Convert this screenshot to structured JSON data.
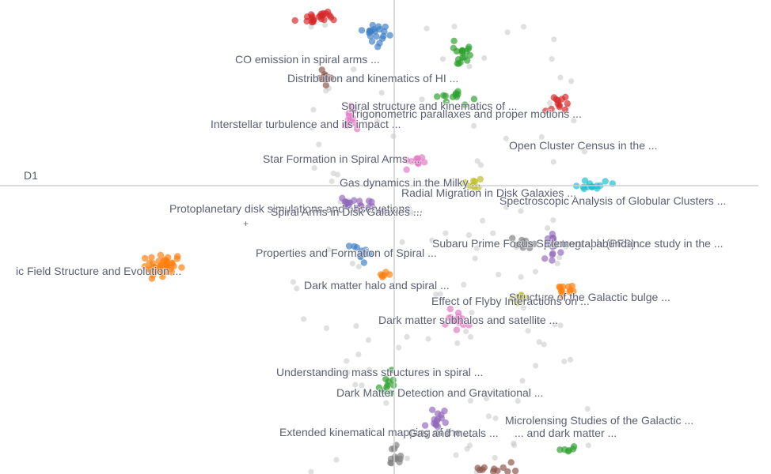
{
  "chart_data": {
    "type": "scatter",
    "xlabel": "",
    "ylabel": "D1",
    "xlim": [
      -1.0,
      1.0
    ],
    "ylim": [
      -1.0,
      1.0
    ],
    "grid": false,
    "legend": "none",
    "marker": "+",
    "clusters": [
      {
        "label": "CO emission in spiral arms ...",
        "color": "#d62728",
        "center": [
          -0.237,
          0.735
        ],
        "spread": [
          0.05,
          0.02
        ],
        "n": 22
      },
      {
        "label": "Distribution and kinematics of HI ...",
        "color": "#3d7fc6",
        "center": [
          -0.05,
          0.66
        ],
        "spread": [
          0.04,
          0.05
        ],
        "n": 20
      },
      {
        "label": "Spiral structure and kinematics of ...",
        "color": "#2ca02c",
        "center": [
          0.218,
          0.575
        ],
        "spread": [
          0.03,
          0.05
        ],
        "n": 18
      },
      {
        "label": "Trigonometric parallaxes and proper motions ...",
        "color": "#2ca02c",
        "center": [
          0.19,
          0.39
        ],
        "spread": [
          0.05,
          0.03
        ],
        "n": 12
      },
      {
        "label": "Interstellar turbulence and its impact ...",
        "color": "#8c564b",
        "center": [
          -0.22,
          0.47
        ],
        "spread": [
          0.02,
          0.05
        ],
        "n": 10
      },
      {
        "label": "Open Cluster Census in the ...",
        "color": "#d62728",
        "center": [
          0.515,
          0.36
        ],
        "spread": [
          0.03,
          0.04
        ],
        "n": 12
      },
      {
        "label": "Star Formation in Spiral Arms ...",
        "color": "#e377c2",
        "center": [
          -0.133,
          0.295
        ],
        "spread": [
          0.03,
          0.05
        ],
        "n": 12
      },
      {
        "label": "Gas dynamics in the Milky ...",
        "color": "#e377c2",
        "center": [
          0.075,
          0.105
        ],
        "spread": [
          0.04,
          0.03
        ],
        "n": 10
      },
      {
        "label": "Radial Migration in Disk Galaxies ...",
        "color": "#bcbd22",
        "center": [
          0.255,
          0.0
        ],
        "spread": [
          0.04,
          0.02
        ],
        "n": 8
      },
      {
        "label": "Spectroscopic Analysis of Globular Clusters ...",
        "color": "#17becf",
        "center": [
          0.612,
          0.0
        ],
        "spread": [
          0.06,
          0.02
        ],
        "n": 14
      },
      {
        "label": "Protoplanetary disk simulations and observations ...",
        "color": "#9467bd",
        "center": [
          -0.145,
          -0.07
        ],
        "spread": [
          0.04,
          0.03
        ],
        "n": 10
      },
      {
        "label": "Spiral Arms in Disk Galaxies ...",
        "color": "#9467bd",
        "center": [
          -0.1,
          -0.09
        ],
        "spread": [
          0.05,
          0.03
        ],
        "n": 10
      },
      {
        "label": "Properties and Formation of Spiral ...",
        "color": "#3d7fc6",
        "center": [
          -0.11,
          -0.29
        ],
        "spread": [
          0.03,
          0.04
        ],
        "n": 10
      },
      {
        "label": "Subaru Prime Focus Spectrograph (PFS) ...",
        "color": "#9467bd",
        "center": [
          0.5,
          -0.26
        ],
        "spread": [
          0.03,
          0.06
        ],
        "n": 16
      },
      {
        "label": "Elemental abundance study in the ...",
        "color": "#7f7f7f",
        "center": [
          0.41,
          -0.25
        ],
        "spread": [
          0.03,
          0.03
        ],
        "n": 10
      },
      {
        "label": "ic Field Structure and Evolution ...",
        "color": "#ff7f0e",
        "center": [
          -0.74,
          -0.34
        ],
        "spread": [
          0.06,
          0.05
        ],
        "n": 40
      },
      {
        "label": "Dark matter halo and spiral ...",
        "color": "#ff7f0e",
        "center": [
          -0.03,
          -0.4
        ],
        "spread": [
          0.02,
          0.02
        ],
        "n": 6
      },
      {
        "label": "Structure of the Galactic bulge ...",
        "color": "#ff7f0e",
        "center": [
          0.545,
          -0.46
        ],
        "spread": [
          0.03,
          0.03
        ],
        "n": 12
      },
      {
        "label": "Effect of Flyby Interactions on ...",
        "color": "#bcbd22",
        "center": [
          0.4,
          -0.49
        ],
        "spread": [
          0.03,
          0.02
        ],
        "n": 10
      },
      {
        "label": "Dark matter subhalos and satellite ...",
        "color": "#e377c2",
        "center": [
          0.2,
          -0.59
        ],
        "spread": [
          0.05,
          0.05
        ],
        "n": 16
      },
      {
        "label": "Understanding mass structures in spiral ...",
        "color": "#2ca02c",
        "center": [
          -0.02,
          -0.88
        ],
        "spread": [
          0.02,
          0.06
        ],
        "n": 10
      },
      {
        "label": "Dark Matter Detection and Gravitational ...",
        "color": "#9467bd",
        "center": [
          0.145,
          -1.02
        ],
        "spread": [
          0.04,
          0.04
        ],
        "n": 14
      },
      {
        "label": "Microlensing Studies of the Galactic ...",
        "color": "#2ca02c",
        "center": [
          0.54,
          -1.15
        ],
        "spread": [
          0.03,
          0.02
        ],
        "n": 6
      },
      {
        "label": "Extended kinematical mapping of the ...",
        "color": "#7f7f7f",
        "center": [
          0.0,
          -1.18
        ],
        "spread": [
          0.03,
          0.04
        ],
        "n": 12
      },
      {
        "label": "Gas and metals ...",
        "color": "#8c564b",
        "center": [
          0.29,
          -1.24
        ],
        "spread": [
          0.05,
          0.03
        ],
        "n": 12
      },
      {
        "label": "... and dark matter ...",
        "color": "#8c564b",
        "center": [
          0.36,
          -1.25
        ],
        "spread": [
          0.04,
          0.03
        ],
        "n": 8
      }
    ],
    "background_points": {
      "color": "#c7c7c7",
      "n": 130,
      "xrange": [
        -0.32,
        0.62
      ],
      "yrange": [
        -1.25,
        0.72
      ]
    }
  }
}
